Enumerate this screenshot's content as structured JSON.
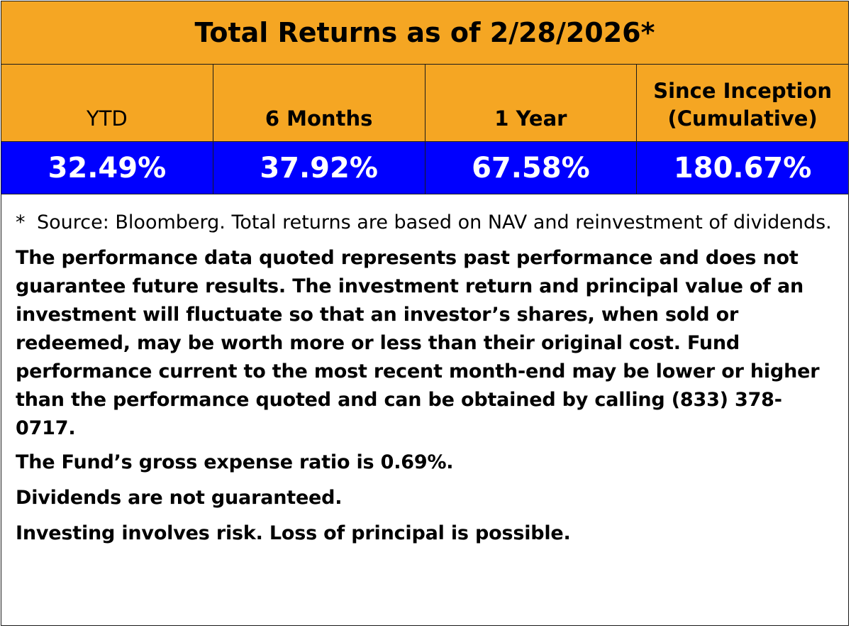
{
  "table": {
    "title": "Total Returns as of 2/28/2026*",
    "columns": [
      {
        "label": "YTD",
        "bold": false,
        "value": "32.49%"
      },
      {
        "label": "6 Months",
        "bold": true,
        "value": "37.92%"
      },
      {
        "label": "1 Year",
        "bold": true,
        "value": "67.58%"
      },
      {
        "label": "Since Inception\n(Cumulative)",
        "bold": true,
        "value": "180.67%"
      }
    ],
    "colors": {
      "header_bg": "#F5A623",
      "value_bg": "#0000FF",
      "value_text": "#FFFFFF"
    }
  },
  "notes": {
    "source_star": "*",
    "source_text": "Source: Bloomberg. Total returns are based on NAV and reinvestment of dividends.",
    "performance": "The performance data quoted represents past performance and does not guarantee future results. The investment return and principal value of an investment will fluctuate so that an investor’s shares, when sold or redeemed, may be worth more or less than their original cost. Fund performance current to the most recent month-end may be lower or higher than the performance quoted and can be obtained by calling (833) 378-0717.",
    "expense_ratio": "The Fund’s gross expense ratio is 0.69%.",
    "dividends": "Dividends are not guaranteed.",
    "risk": "Investing involves risk. Loss of principal is possible."
  }
}
